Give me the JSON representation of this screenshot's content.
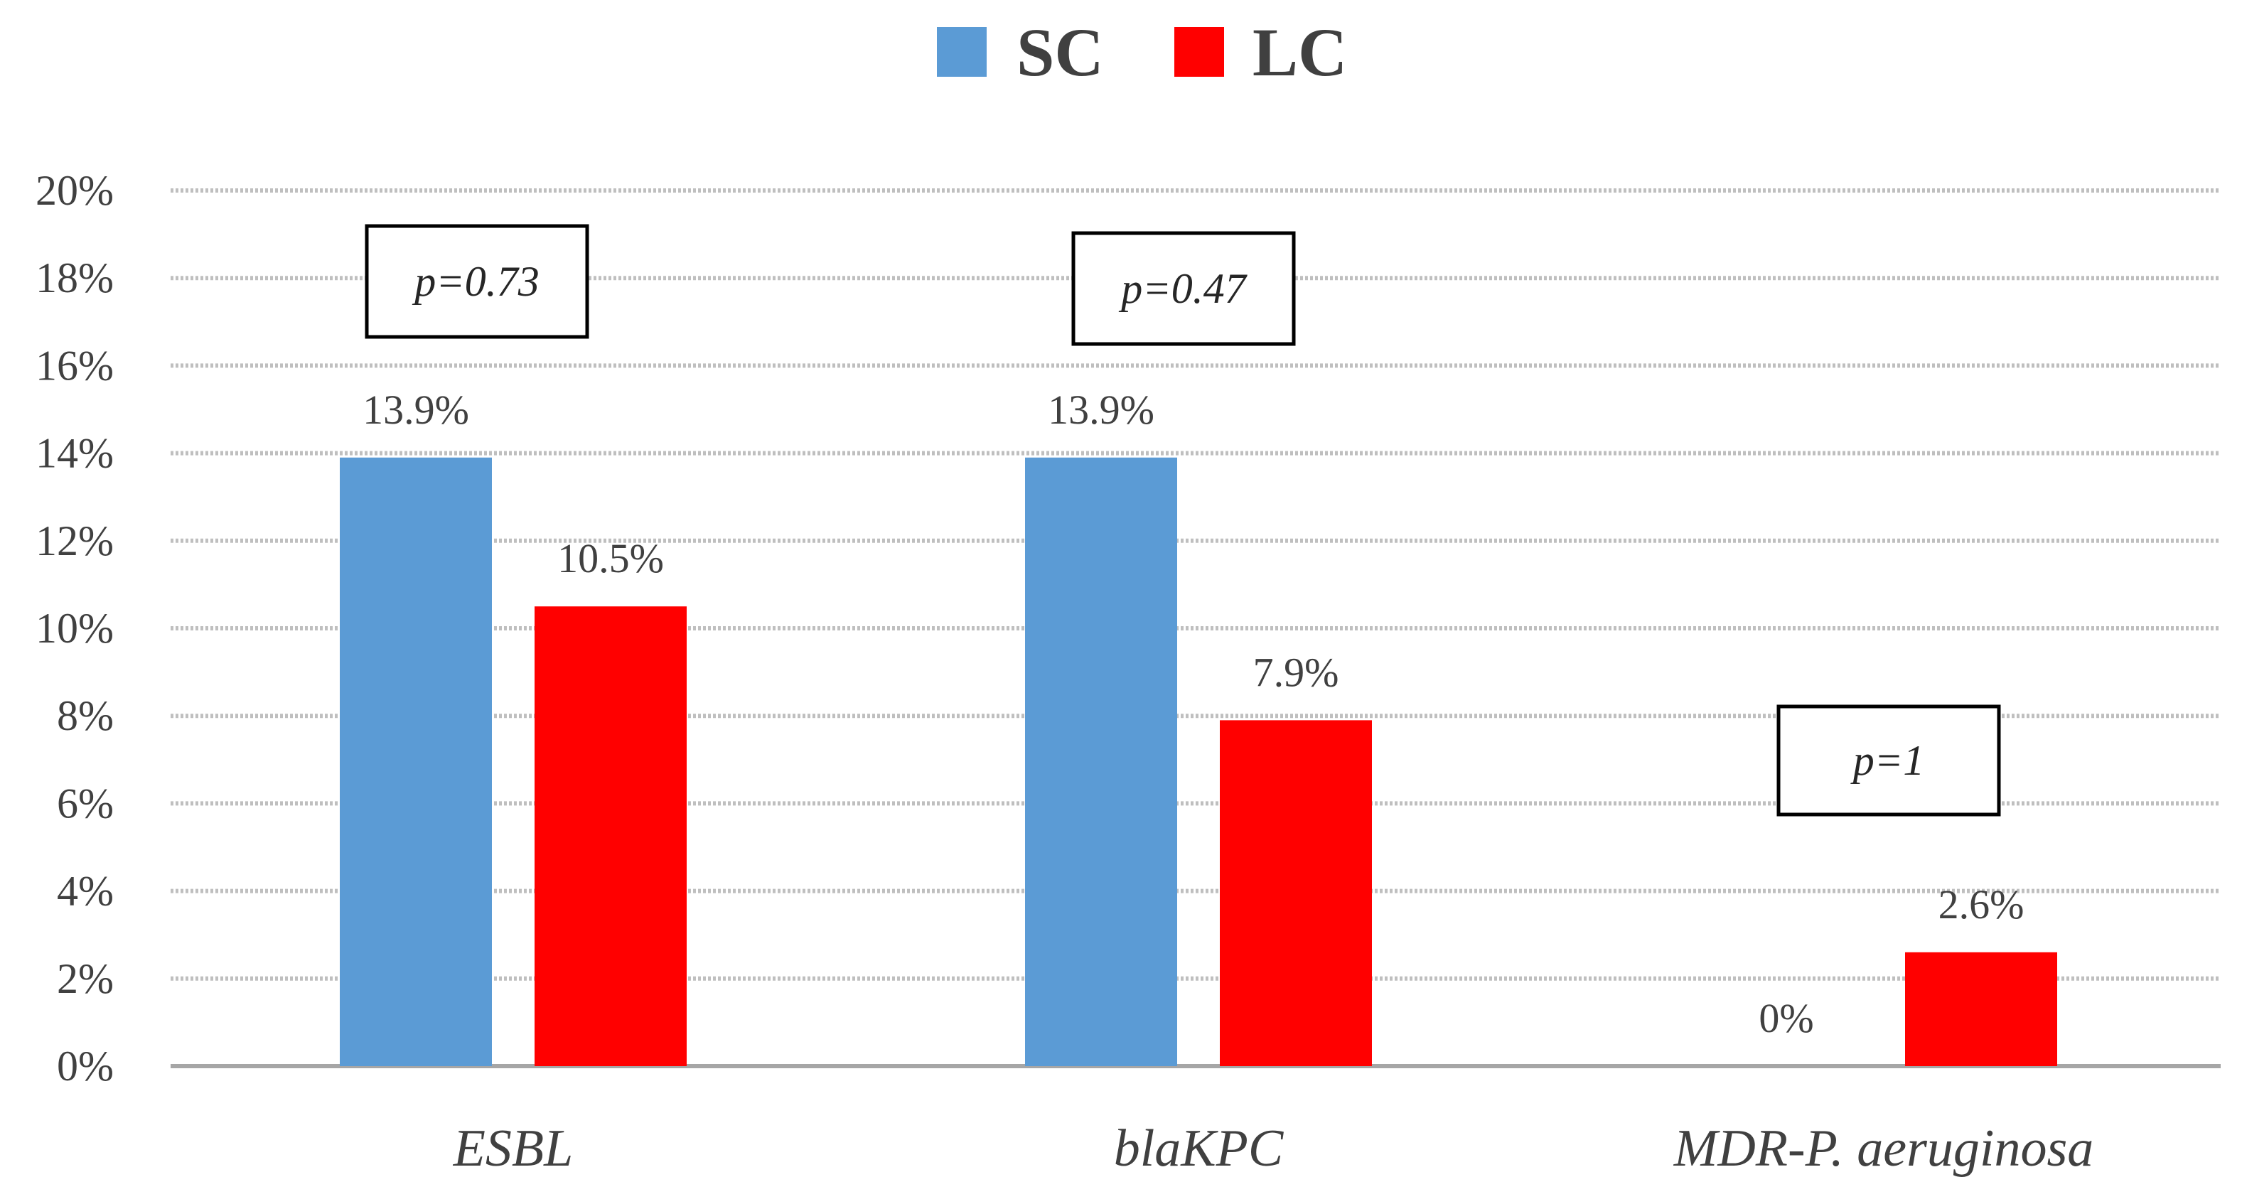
{
  "chart_data": {
    "type": "bar",
    "categories": [
      "ESBL",
      "blaKPC",
      "MDR-P. aeruginosa"
    ],
    "series": [
      {
        "name": "SC",
        "color": "#5b9bd5",
        "values": [
          13.9,
          13.9,
          0
        ],
        "labels": [
          "13.9%",
          "13.9%",
          "0%"
        ]
      },
      {
        "name": "LC",
        "color": "#ff0000",
        "values": [
          10.5,
          7.9,
          2.6
        ],
        "labels": [
          "10.5%",
          "7.9%",
          "2.6%"
        ]
      }
    ],
    "p_values": [
      "p=0.73",
      "p=0.47",
      "p=1"
    ],
    "ylim": [
      0,
      20
    ],
    "yticks": [
      0,
      2,
      4,
      6,
      8,
      10,
      12,
      14,
      16,
      18,
      20
    ],
    "ytick_labels": [
      "0%",
      "2%",
      "4%",
      "6%",
      "8%",
      "10%",
      "12%",
      "14%",
      "16%",
      "18%",
      "20%"
    ],
    "grid": true,
    "legend_position": "top-center",
    "title": "",
    "xlabel": "",
    "ylabel": ""
  }
}
